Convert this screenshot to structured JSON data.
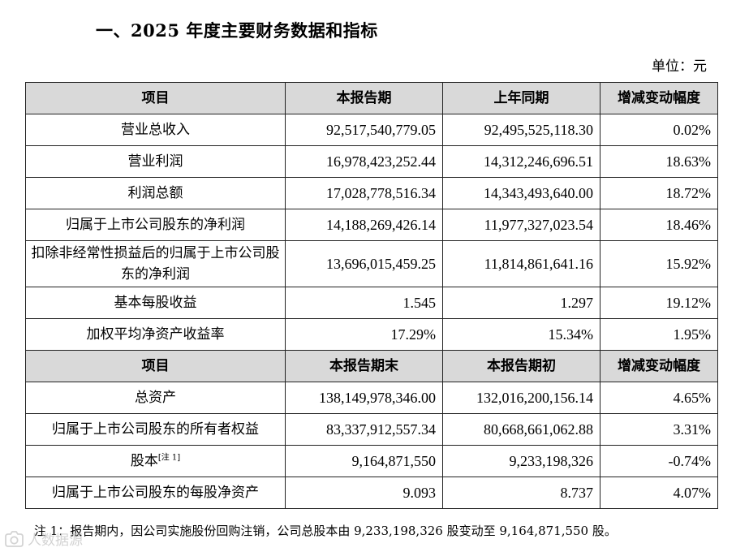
{
  "section_title": "一、2025 年度主要财务数据和指标",
  "unit_label": "单位：元",
  "table1": {
    "headers": [
      "项目",
      "本报告期",
      "上年同期",
      "增减变动幅度"
    ],
    "rows": [
      {
        "item": "营业总收入",
        "current": "92,517,540,779.05",
        "prior": "92,495,525,118.30",
        "change": "0.02%"
      },
      {
        "item": "营业利润",
        "current": "16,978,423,252.44",
        "prior": "14,312,246,696.51",
        "change": "18.63%"
      },
      {
        "item": "利润总额",
        "current": "17,028,778,516.34",
        "prior": "14,343,493,640.00",
        "change": "18.72%"
      },
      {
        "item": "归属于上市公司股东的净利润",
        "current": "14,188,269,426.14",
        "prior": "11,977,327,023.54",
        "change": "18.46%"
      },
      {
        "item": "扣除非经常性损益后的归属于上市公司股东的净利润",
        "current": "13,696,015,459.25",
        "prior": "11,814,861,641.16",
        "change": "15.92%"
      },
      {
        "item": "基本每股收益",
        "current": "1.545",
        "prior": "1.297",
        "change": "19.12%"
      },
      {
        "item": "加权平均净资产收益率",
        "current": "17.29%",
        "prior": "15.34%",
        "change": "1.95%"
      }
    ]
  },
  "table2": {
    "headers": [
      "项目",
      "本报告期末",
      "本报告期初",
      "增减变动幅度"
    ],
    "rows": [
      {
        "item": "总资产",
        "current": "138,149,978,346.00",
        "prior": "132,016,200,156.14",
        "change": "4.65%"
      },
      {
        "item": "归属于上市公司股东的所有者权益",
        "current": "83,337,912,557.34",
        "prior": "80,668,661,062.88",
        "change": "3.31%"
      },
      {
        "item": "股本",
        "note": "[注 1]",
        "current": "9,164,871,550",
        "prior": "9,233,198,326",
        "change": "-0.74%"
      },
      {
        "item": "归属于上市公司股东的每股净资产",
        "current": "9.093",
        "prior": "8.737",
        "change": "4.07%"
      }
    ]
  },
  "footnote": "注 1：报告期内，因公司实施股份回购注销，公司总股本由 9,233,198,326 股变动至 9,164,871,550 股。",
  "watermark": {
    "icon": "camera-logo-icon",
    "text": "人数据源"
  }
}
